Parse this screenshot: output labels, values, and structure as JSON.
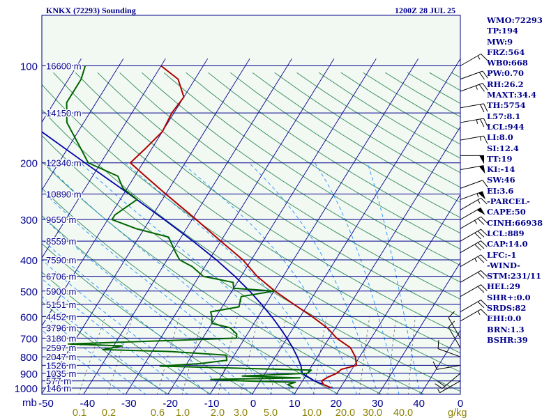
{
  "header": {
    "station": "KNKX (72293) Sounding",
    "time": "1200Z 28 JUL 25"
  },
  "colors": {
    "isobar": "#00008b",
    "isotherm": "#00008b",
    "dry_adiabat": "#2e8b57",
    "moist_adiabat": "#1e90ff",
    "mixing_ratio": "#666666",
    "temperature": "#b00000",
    "dewpoint": "#006400",
    "parcel": "#0000aa",
    "wind": "#000000",
    "plot_bg": "#f2f8f2",
    "text": "#00008b"
  },
  "chart_data": {
    "type": "skew-t",
    "pressure_labels": [
      "100",
      "200",
      "300",
      "400",
      "500",
      "600",
      "700",
      "800",
      "900",
      "1000"
    ],
    "pressure_unit": "mb",
    "height_labels": [
      {
        "p": 100,
        "label": "16600 m"
      },
      {
        "p": 140,
        "label": "14150 m"
      },
      {
        "p": 200,
        "label": "12340 m"
      },
      {
        "p": 250,
        "label": "10890 m"
      },
      {
        "p": 300,
        "label": "9650 m"
      },
      {
        "p": 350,
        "label": "8559 m"
      },
      {
        "p": 400,
        "label": "7590 m"
      },
      {
        "p": 450,
        "label": "6706 m"
      },
      {
        "p": 500,
        "label": "5900 m"
      },
      {
        "p": 550,
        "label": "5151 m"
      },
      {
        "p": 600,
        "label": "4452 m"
      },
      {
        "p": 650,
        "label": "3796 m"
      },
      {
        "p": 700,
        "label": "3180 m"
      },
      {
        "p": 750,
        "label": "2597 m"
      },
      {
        "p": 800,
        "label": "2047 m"
      },
      {
        "p": 850,
        "label": "1526 m"
      },
      {
        "p": 900,
        "label": "1035 m"
      },
      {
        "p": 950,
        "label": "577 m"
      },
      {
        "p": 1000,
        "label": "146 m"
      }
    ],
    "temperature_ticks": [
      "-50",
      "-40",
      "-30",
      "-20",
      "-10",
      "0",
      "10",
      "20",
      "30",
      "40",
      "0"
    ],
    "mixing_ratio_ticks": [
      "0.1",
      "0.2",
      "0.6",
      "1.0",
      "2.0",
      "3.0",
      "5.0",
      "10.0",
      "20.0",
      "30.0",
      "40.0"
    ],
    "mixing_ratio_unit": "g/kg",
    "temperature_profile": [
      [
        1000,
        18
      ],
      [
        975,
        15.5
      ],
      [
        950,
        14.5
      ],
      [
        925,
        15.5
      ],
      [
        900,
        17
      ],
      [
        875,
        17.5
      ],
      [
        850,
        20.5
      ],
      [
        800,
        19
      ],
      [
        750,
        16.5
      ],
      [
        700,
        11.8
      ],
      [
        650,
        8
      ],
      [
        600,
        2.8
      ],
      [
        550,
        -3.3
      ],
      [
        500,
        -9.8
      ],
      [
        450,
        -16.2
      ],
      [
        400,
        -22
      ],
      [
        350,
        -30
      ],
      [
        300,
        -39
      ],
      [
        250,
        -50
      ],
      [
        220,
        -57.5
      ],
      [
        200,
        -63
      ],
      [
        180,
        -61.5
      ],
      [
        160,
        -60
      ],
      [
        140,
        -60.5
      ],
      [
        125,
        -60
      ],
      [
        110,
        -64
      ],
      [
        100,
        -70
      ]
    ],
    "dewpoint_profile": [
      [
        1000,
        9
      ],
      [
        975,
        7
      ],
      [
        960,
        8.5
      ],
      [
        950,
        -4
      ],
      [
        940,
        -12
      ],
      [
        930,
        9
      ],
      [
        918,
        -5
      ],
      [
        900,
        10
      ],
      [
        880,
        10.5
      ],
      [
        855,
        -26
      ],
      [
        840,
        -17
      ],
      [
        820,
        -11
      ],
      [
        790,
        -12
      ],
      [
        770,
        -26
      ],
      [
        760,
        -42
      ],
      [
        740,
        -38
      ],
      [
        730,
        -51
      ],
      [
        710,
        -25
      ],
      [
        700,
        -12
      ],
      [
        680,
        -12.5
      ],
      [
        650,
        -15
      ],
      [
        630,
        -20
      ],
      [
        600,
        -21
      ],
      [
        580,
        -22
      ],
      [
        560,
        -16
      ],
      [
        520,
        -17
      ],
      [
        500,
        -10
      ],
      [
        490,
        -20
      ],
      [
        470,
        -21
      ],
      [
        450,
        -29
      ],
      [
        420,
        -33
      ],
      [
        400,
        -37
      ],
      [
        380,
        -39
      ],
      [
        340,
        -43
      ],
      [
        320,
        -52
      ],
      [
        300,
        -59
      ],
      [
        290,
        -59
      ],
      [
        260,
        -56
      ],
      [
        240,
        -61
      ],
      [
        220,
        -64
      ],
      [
        200,
        -73
      ],
      [
        180,
        -77
      ],
      [
        150,
        -84
      ],
      [
        130,
        -87
      ],
      [
        110,
        -87
      ],
      [
        100,
        -88
      ]
    ],
    "parcel_profile": [
      [
        1000,
        18
      ],
      [
        950,
        12.8
      ],
      [
        900,
        8.8
      ],
      [
        850,
        7.3
      ],
      [
        800,
        5.2
      ],
      [
        750,
        2.8
      ],
      [
        700,
        0
      ],
      [
        650,
        -3.2
      ],
      [
        600,
        -6.8
      ],
      [
        550,
        -11
      ],
      [
        500,
        -15.8
      ],
      [
        450,
        -21.5
      ],
      [
        400,
        -28.3
      ],
      [
        350,
        -36.6
      ],
      [
        300,
        -46.6
      ],
      [
        250,
        -58.7
      ],
      [
        200,
        -73.8
      ],
      [
        150,
        -93
      ],
      [
        120,
        -107
      ]
    ],
    "wind_levels": [
      {
        "p": 100,
        "dir": 60,
        "spd": 15
      },
      {
        "p": 110,
        "dir": 70,
        "spd": 20
      },
      {
        "p": 120,
        "dir": 70,
        "spd": 25
      },
      {
        "p": 135,
        "dir": 80,
        "spd": 20
      },
      {
        "p": 150,
        "dir": 80,
        "spd": 25
      },
      {
        "p": 170,
        "dir": 80,
        "spd": 15
      },
      {
        "p": 190,
        "dir": 90,
        "spd": 50
      },
      {
        "p": 210,
        "dir": 80,
        "spd": 50
      },
      {
        "p": 240,
        "dir": 70,
        "spd": 10
      },
      {
        "p": 260,
        "dir": 70,
        "spd": 55
      },
      {
        "p": 280,
        "dir": 60,
        "spd": 15
      },
      {
        "p": 300,
        "dir": 60,
        "spd": 50
      },
      {
        "p": 320,
        "dir": 60,
        "spd": 25
      },
      {
        "p": 350,
        "dir": 60,
        "spd": 30
      },
      {
        "p": 380,
        "dir": 60,
        "spd": 30
      },
      {
        "p": 420,
        "dir": 60,
        "spd": 25
      },
      {
        "p": 470,
        "dir": 60,
        "spd": 20
      },
      {
        "p": 520,
        "dir": 60,
        "spd": 20
      },
      {
        "p": 580,
        "dir": 60,
        "spd": 20
      },
      {
        "p": 620,
        "dir": 60,
        "spd": 15
      },
      {
        "p": 700,
        "dir": 330,
        "spd": 10
      },
      {
        "p": 750,
        "dir": 330,
        "spd": 10
      },
      {
        "p": 800,
        "dir": 290,
        "spd": 10
      },
      {
        "p": 850,
        "dir": 260,
        "spd": 10
      },
      {
        "p": 900,
        "dir": 230,
        "spd": 20
      },
      {
        "p": 950,
        "dir": 240,
        "spd": 5
      }
    ]
  },
  "indices": [
    "WMO:72293",
    "TP:194",
    "MW:9",
    "FRZ:564",
    "WB0:668",
    "PW:0.70",
    "RH:26.2",
    "MAXT:34.4",
    "TH:5754",
    "L57:8.1",
    "LCL:944",
    "LI:8.0",
    "SI:12.4",
    "TT:19",
    "KI:-14",
    "SW:46",
    "EI:3.6",
    "-PARCEL-",
    "CAPE:50",
    "CINH:66938",
    "LCL:889",
    "CAP:14.0",
    "LFC:-1",
    "-WIND-",
    "STM:231/11",
    "HEL:29",
    "SHR+:0.0",
    "SRDS:82",
    "EHI:0.0",
    "BRN:1.3",
    "BSHR:39"
  ]
}
